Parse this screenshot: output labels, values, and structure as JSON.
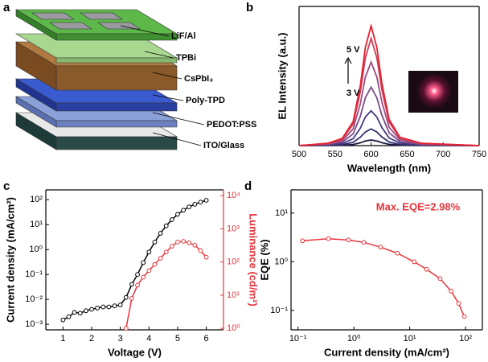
{
  "diagram": {
    "panel": "a",
    "layers": [
      "LiF/Al",
      "TPBi",
      "CsPbI₃",
      "Poly-TPD",
      "PEDOT:PSS",
      "ITO/Glass"
    ]
  },
  "chart_data": [
    {
      "panel": "b",
      "type": "line",
      "xlabel": "Wavelength (nm)",
      "ylabel": "EL Intensity (a.u.)",
      "annotations": [
        "5 V",
        "3 V"
      ],
      "x": [
        500,
        540,
        560,
        575,
        585,
        592,
        600,
        608,
        615,
        625,
        640,
        670,
        750
      ],
      "xlim": [
        500,
        750
      ],
      "xticks": [
        500,
        550,
        600,
        650,
        700,
        750
      ],
      "ylim": [
        0,
        1
      ],
      "series": [
        {
          "color": "#1a1a40",
          "values": [
            0,
            0.001,
            0.002,
            0.008,
            0.02,
            0.033,
            0.04,
            0.033,
            0.021,
            0.009,
            0.003,
            0.001,
            0
          ]
        },
        {
          "color": "#2e2e6e",
          "values": [
            0,
            0.002,
            0.007,
            0.024,
            0.06,
            0.098,
            0.12,
            0.098,
            0.062,
            0.026,
            0.008,
            0.002,
            0
          ]
        },
        {
          "color": "#4a3a80",
          "values": [
            0,
            0.005,
            0.015,
            0.05,
            0.125,
            0.205,
            0.25,
            0.205,
            0.13,
            0.055,
            0.018,
            0.005,
            0
          ]
        },
        {
          "color": "#7a4a8a",
          "values": [
            0,
            0.008,
            0.025,
            0.084,
            0.21,
            0.344,
            0.42,
            0.344,
            0.218,
            0.092,
            0.029,
            0.008,
            0
          ]
        },
        {
          "color": "#a04a80",
          "values": [
            0,
            0.012,
            0.036,
            0.12,
            0.3,
            0.492,
            0.6,
            0.492,
            0.312,
            0.132,
            0.042,
            0.012,
            0
          ]
        },
        {
          "color": "#c8405a",
          "values": [
            0,
            0.015,
            0.046,
            0.154,
            0.385,
            0.631,
            0.77,
            0.631,
            0.4,
            0.169,
            0.054,
            0.015,
            0
          ]
        },
        {
          "color": "#e82030",
          "values": [
            0,
            0.017,
            0.052,
            0.172,
            0.43,
            0.705,
            0.86,
            0.705,
            0.447,
            0.189,
            0.06,
            0.017,
            0
          ]
        }
      ]
    },
    {
      "panel": "c",
      "type": "line",
      "xlabel": "Voltage (V)",
      "ylabel": "Current density (mA/cm²)",
      "y2label": "Luminance (cd/m²)",
      "markers": true,
      "xlim": [
        0.4,
        6.6
      ],
      "xticks": [
        1,
        2,
        3,
        4,
        5,
        6
      ],
      "yscale": "log",
      "ylim": [
        0.0006,
        250
      ],
      "yticks": [
        {
          "value": 0.001,
          "label": "10⁻³"
        },
        {
          "value": 0.01,
          "label": "10⁻²"
        },
        {
          "value": 0.1,
          "label": "10⁻¹"
        },
        {
          "value": 1,
          "label": "10⁰"
        },
        {
          "value": 10,
          "label": "10¹"
        },
        {
          "value": 100,
          "label": "10²"
        }
      ],
      "y2scale": "log",
      "y2lim": [
        0.9,
        15000
      ],
      "y2ticks": [
        {
          "value": 1,
          "label": "10⁰"
        },
        {
          "value": 10,
          "label": "10¹"
        },
        {
          "value": 100,
          "label": "10²"
        },
        {
          "value": 1000,
          "label": "10³"
        },
        {
          "value": 10000,
          "label": "10⁴"
        }
      ],
      "series": [
        {
          "color": "#000000",
          "x": [
            1.0,
            1.2,
            1.4,
            1.6,
            1.8,
            2.0,
            2.2,
            2.4,
            2.6,
            2.8,
            3.0,
            3.2,
            3.4,
            3.6,
            3.8,
            4.0,
            4.2,
            4.4,
            4.6,
            4.8,
            5.0,
            5.2,
            5.4,
            5.6,
            5.8,
            6.0
          ],
          "values": [
            0.0015,
            0.002,
            0.003,
            0.0028,
            0.0035,
            0.004,
            0.0045,
            0.005,
            0.005,
            0.0055,
            0.006,
            0.012,
            0.04,
            0.1,
            0.3,
            0.8,
            2,
            4.5,
            9,
            16,
            26,
            38,
            52,
            66,
            80,
            95
          ]
        },
        {
          "color": "#e8343a",
          "axis": "y2",
          "x": [
            3.2,
            3.4,
            3.6,
            3.8,
            4.0,
            4.2,
            4.4,
            4.6,
            4.8,
            5.0,
            5.2,
            5.4,
            5.6,
            5.8,
            6.0
          ],
          "values": [
            1.0,
            8,
            20,
            35,
            55,
            85,
            130,
            200,
            300,
            400,
            420,
            380,
            320,
            220,
            140
          ]
        }
      ]
    },
    {
      "panel": "d",
      "type": "line",
      "xlabel": "Current density (mA/cm²)",
      "ylabel": "EQE (%)",
      "annotations": [
        "Max. EQE=2.98%"
      ],
      "markers": true,
      "xscale": "log",
      "xlim": [
        0.075,
        200
      ],
      "xticks": [
        {
          "value": 0.1,
          "label": "10⁻¹"
        },
        {
          "value": 1,
          "label": "10⁰"
        },
        {
          "value": 10,
          "label": "10¹"
        },
        {
          "value": 100,
          "label": "10²"
        }
      ],
      "yscale": "log",
      "ylim": [
        0.04,
        30
      ],
      "yticks": [
        {
          "value": 0.1,
          "label": "10⁻¹"
        },
        {
          "value": 1,
          "label": "10⁰"
        },
        {
          "value": 10,
          "label": "10¹"
        }
      ],
      "series": [
        {
          "color": "#e8343a",
          "x": [
            0.12,
            0.35,
            0.8,
            1.5,
            3,
            6,
            12,
            20,
            35,
            55,
            75,
            95
          ],
          "values": [
            2.7,
            2.98,
            2.8,
            2.5,
            2.0,
            1.5,
            1.0,
            0.7,
            0.45,
            0.25,
            0.14,
            0.075
          ]
        }
      ]
    }
  ]
}
